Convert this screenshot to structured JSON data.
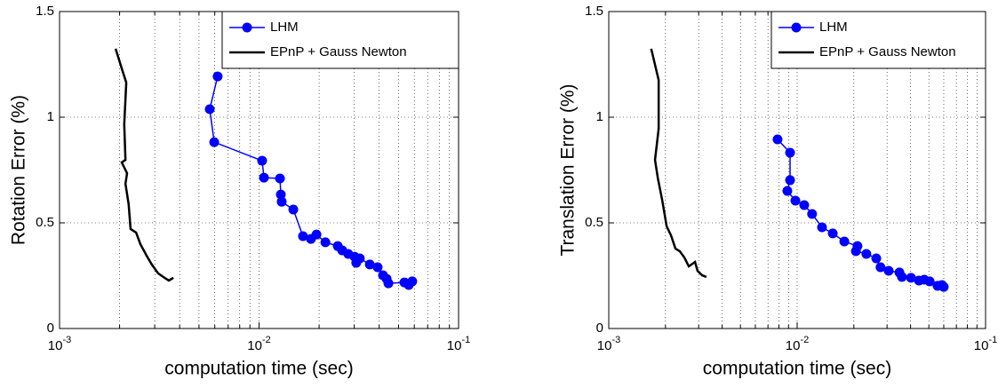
{
  "chart_data": [
    {
      "type": "line",
      "xlabel": "computation time (sec)",
      "ylabel": "Rotation Error (%)",
      "xscale": "log",
      "xlim": [
        0.001,
        0.1
      ],
      "xticks": [
        {
          "value": 0.001,
          "label": "10^-3"
        },
        {
          "value": 0.01,
          "label": "10^-2"
        },
        {
          "value": 0.1,
          "label": "10^-1"
        }
      ],
      "ylim": [
        0,
        1.5
      ],
      "yticks": [
        0,
        0.5,
        1,
        1.5
      ],
      "grid": true,
      "legend": "upper right",
      "series": [
        {
          "name": "LHM",
          "color": "#0000ff",
          "marker": "o",
          "x": [
            0.0062,
            0.00566,
            0.00596,
            0.01036,
            0.01058,
            0.01273,
            0.01286,
            0.01299,
            0.01485,
            0.0166,
            0.0182,
            0.0194,
            0.0215,
            0.0248,
            0.0261,
            0.028,
            0.0301,
            0.0307,
            0.032,
            0.0359,
            0.0393,
            0.0418,
            0.0436,
            0.0445,
            0.0535,
            0.0563,
            0.0586
          ],
          "values": [
            1.193,
            1.038,
            0.882,
            0.794,
            0.714,
            0.71,
            0.634,
            0.6,
            0.563,
            0.437,
            0.424,
            0.445,
            0.408,
            0.39,
            0.37,
            0.353,
            0.34,
            0.311,
            0.332,
            0.303,
            0.29,
            0.252,
            0.235,
            0.214,
            0.218,
            0.206,
            0.223
          ]
        },
        {
          "name": "EPnP + Gauss Newton",
          "color": "#000000",
          "x": [
            0.00191,
            0.00207,
            0.00216,
            0.00211,
            0.00214,
            0.00205,
            0.00218,
            0.00214,
            0.00222,
            0.00227,
            0.00242,
            0.00254,
            0.00273,
            0.0029,
            0.00312,
            0.00336,
            0.00353,
            0.00372
          ],
          "values": [
            1.324,
            1.218,
            1.164,
            0.966,
            0.798,
            0.786,
            0.735,
            0.685,
            0.588,
            0.471,
            0.454,
            0.4,
            0.345,
            0.303,
            0.261,
            0.24,
            0.227,
            0.24
          ]
        }
      ]
    },
    {
      "type": "line",
      "xlabel": "computation time (sec)",
      "ylabel": "Translation Error (%)",
      "xscale": "log",
      "xlim": [
        0.001,
        0.1
      ],
      "xticks": [
        {
          "value": 0.001,
          "label": "10^-3"
        },
        {
          "value": 0.01,
          "label": "10^-2"
        },
        {
          "value": 0.1,
          "label": "10^-1"
        }
      ],
      "ylim": [
        0,
        1.5
      ],
      "yticks": [
        0,
        0.5,
        1,
        1.5
      ],
      "grid": true,
      "legend": "upper right",
      "series": [
        {
          "name": "LHM",
          "color": "#0000ff",
          "marker": "o",
          "x": [
            0.00787,
            0.00917,
            0.00917,
            0.00887,
            0.00979,
            0.0109,
            0.012,
            0.01355,
            0.01545,
            0.0178,
            0.0209,
            0.0205,
            0.0233,
            0.0263,
            0.0277,
            0.0306,
            0.0349,
            0.036,
            0.0402,
            0.0443,
            0.0473,
            0.0505,
            0.0556,
            0.0587,
            0.06
          ],
          "values": [
            0.895,
            0.832,
            0.702,
            0.651,
            0.605,
            0.584,
            0.542,
            0.479,
            0.45,
            0.412,
            0.39,
            0.366,
            0.353,
            0.332,
            0.29,
            0.273,
            0.265,
            0.244,
            0.24,
            0.227,
            0.231,
            0.223,
            0.202,
            0.206,
            0.197
          ]
        },
        {
          "name": "EPnP + Gauss Newton",
          "color": "#000000",
          "x": [
            0.00168,
            0.00184,
            0.00184,
            0.00176,
            0.00182,
            0.00192,
            0.00203,
            0.00214,
            0.00226,
            0.00238,
            0.00252,
            0.00266,
            0.00287,
            0.00296,
            0.00313,
            0.0033
          ],
          "values": [
            1.324,
            1.176,
            0.945,
            0.798,
            0.714,
            0.609,
            0.483,
            0.441,
            0.378,
            0.366,
            0.336,
            0.294,
            0.315,
            0.273,
            0.252,
            0.244
          ]
        }
      ]
    }
  ]
}
